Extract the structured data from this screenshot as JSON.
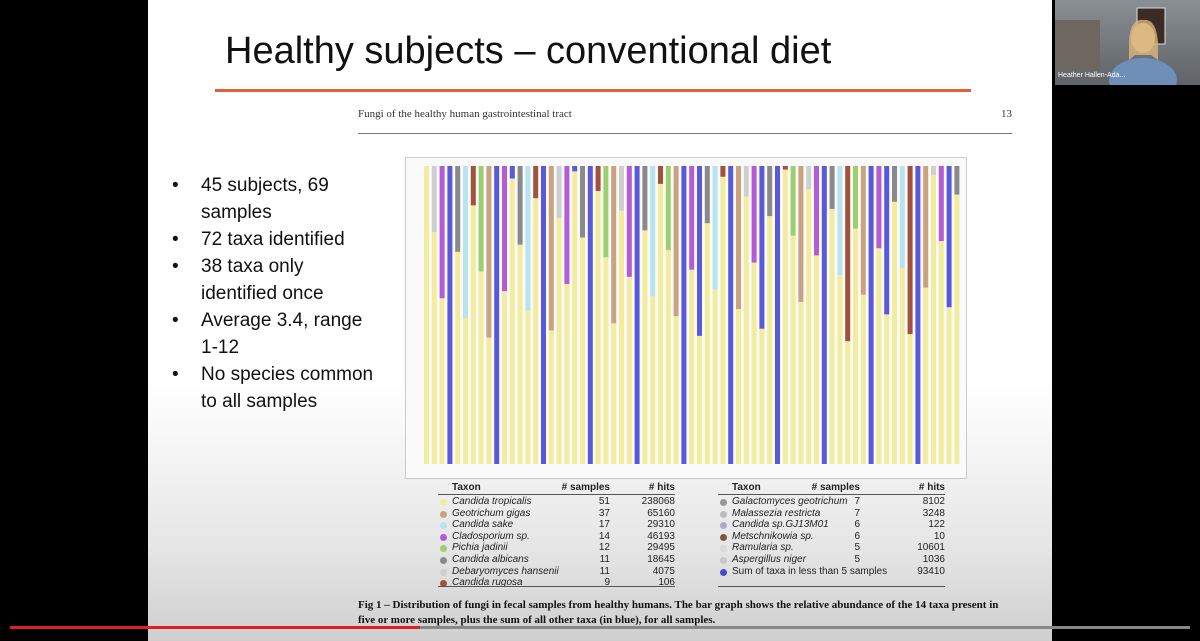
{
  "slide": {
    "title": "Healthy subjects – conventional diet",
    "bullets": [
      "45 subjects, 69 samples",
      "72 taxa identified",
      "38 taxa only identified once",
      "Average 3.4, range 1-12",
      "No species common to all samples"
    ]
  },
  "paper": {
    "header": "Fungi of the healthy human gastrointestinal tract",
    "page": "13",
    "legend": {
      "headers": [
        "Taxon",
        "# samples",
        "# hits"
      ],
      "left": [
        [
          "Candida tropicalis",
          51,
          238068
        ],
        [
          "Geotrichum gigas",
          37,
          65160
        ],
        [
          "Candida sake",
          17,
          29310
        ],
        [
          "Cladosporium sp.",
          14,
          46193
        ],
        [
          "Pichia jadinii",
          12,
          29495
        ],
        [
          "Candida albicans",
          11,
          18645
        ],
        [
          "Debaryomyces hansenii",
          11,
          4075
        ],
        [
          "Candida rugosa",
          9,
          106
        ]
      ],
      "right": [
        [
          "Galactomyces geotrichum",
          7,
          8102
        ],
        [
          "Malassezia restricta",
          7,
          3248
        ],
        [
          "Candida sp.GJ13M01",
          6,
          122
        ],
        [
          "Metschnikowia sp.",
          6,
          10
        ],
        [
          "Ramularia sp.",
          5,
          10601
        ],
        [
          "Aspergillus niger",
          5,
          1036
        ],
        [
          "Sum of taxa in less than 5 samples",
          "",
          93410
        ]
      ]
    },
    "caption": "Fig 1 – Distribution of fungi in fecal samples from healthy humans. The bar graph shows the relative abundance of the 14 taxa present in five or more samples, plus the sum of all other taxa (in blue), for all samples."
  },
  "participant": "Heather Hallen-Ada..."
}
